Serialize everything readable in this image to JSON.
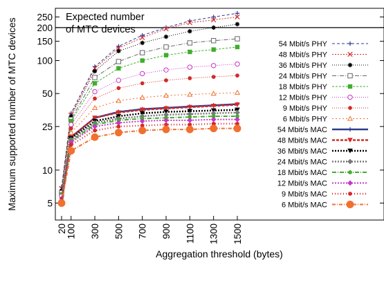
{
  "chart_data": {
    "type": "line",
    "ylabel": "Maximum supported number of MTC devices",
    "xlabel": "Aggregation threshold (bytes)",
    "y_scale": "log",
    "ylim": [
      3.5,
      300
    ],
    "xlim": [
      20,
      1500
    ],
    "x": [
      20,
      100,
      300,
      500,
      700,
      900,
      1100,
      1300,
      1500
    ],
    "x_tick_labels": [
      "20",
      "100",
      "300",
      "500",
      "700",
      "900",
      "1100",
      "1300",
      "1500"
    ],
    "y_ticks": [
      5,
      10,
      25,
      50,
      100,
      150,
      200,
      250
    ],
    "y_tick_labels": [
      "5",
      "10",
      "25",
      "50",
      "100",
      "150",
      "200",
      "250"
    ],
    "grid": false,
    "legend_position": "right",
    "annotation": {
      "line1": "Expected number",
      "line2": "of MTC devices",
      "value": 200
    },
    "series": [
      {
        "name": "54 Mbit/s PHY",
        "color": "#2b3b8f",
        "dash": "4,3",
        "width": 1,
        "marker": "plus",
        "values": [
          7,
          33,
          88,
          135,
          170,
          200,
          230,
          250,
          270
        ]
      },
      {
        "name": "48 Mbit/s PHY",
        "color": "#d42a2a",
        "dash": "2,2",
        "width": 1,
        "marker": "x",
        "values": [
          6.8,
          32,
          85,
          130,
          162,
          195,
          222,
          235,
          250
        ]
      },
      {
        "name": "36 Mbit/s PHY",
        "color": "#000000",
        "dash": "1,2",
        "width": 1,
        "marker": "star",
        "values": [
          6.5,
          31,
          80,
          122,
          145,
          165,
          185,
          200,
          215
        ]
      },
      {
        "name": "24 Mbit/s PHY",
        "color": "#666666",
        "dash": "6,2,1,2",
        "width": 1,
        "marker": "square-open",
        "values": [
          6.2,
          29,
          70,
          98,
          118,
          133,
          145,
          152,
          158
        ]
      },
      {
        "name": "18 Mbit/s PHY",
        "color": "#3fae2a",
        "dash": "3,2",
        "width": 1,
        "marker": "square-filled",
        "values": [
          6,
          28,
          62,
          85,
          100,
          112,
          120,
          126,
          133
        ]
      },
      {
        "name": "12 Mbit/s PHY",
        "color": "#c636c6",
        "dash": "1,2",
        "width": 1,
        "marker": "circle-open",
        "values": [
          5.8,
          26,
          52,
          66,
          76,
          82,
          87,
          90,
          93
        ]
      },
      {
        "name": "9 Mbit/s PHY",
        "color": "#d42a2a",
        "dash": "1,2",
        "width": 1,
        "marker": "circle-filled",
        "values": [
          5.5,
          24,
          45,
          56,
          62,
          66,
          69,
          71,
          73
        ]
      },
      {
        "name": "6 Mbit/s PHY",
        "color": "#f07030",
        "dash": "2,3",
        "width": 1,
        "marker": "triangle-open",
        "values": [
          5.3,
          22,
          37,
          43,
          46,
          48,
          49,
          50,
          51
        ]
      },
      {
        "name": "54 Mbit/s MAC",
        "color": "#2b3b8f",
        "dash": "",
        "width": 2.5,
        "marker": "plus",
        "values": [
          5.1,
          20,
          30,
          34,
          36,
          37,
          38,
          39,
          40
        ]
      },
      {
        "name": "48 Mbit/s MAC",
        "color": "#d42a2a",
        "dash": "4,2",
        "width": 2.5,
        "marker": "triangle-down",
        "values": [
          5.1,
          20,
          30,
          33.5,
          35.5,
          36.5,
          37.5,
          38.5,
          39.5
        ]
      },
      {
        "name": "36 Mbit/s MAC",
        "color": "#000000",
        "dash": "2,2",
        "width": 2.5,
        "marker": "triangle-down",
        "values": [
          5,
          19.5,
          28,
          31,
          33,
          34,
          34.5,
          35,
          35.5
        ]
      },
      {
        "name": "24 Mbit/s MAC",
        "color": "#777777",
        "dash": "2,2",
        "width": 2.5,
        "marker": "diamond",
        "values": [
          5,
          19,
          27,
          29.5,
          31,
          32,
          32.5,
          33,
          33.5
        ]
      },
      {
        "name": "18 Mbit/s MAC",
        "color": "#3fae2a",
        "dash": "6,2,1,2",
        "width": 2,
        "marker": "circle-filled",
        "values": [
          5,
          18.5,
          26,
          28.5,
          29.5,
          30,
          30.5,
          31,
          31
        ]
      },
      {
        "name": "12 Mbit/s MAC",
        "color": "#c636c6",
        "dash": "2,2",
        "width": 2,
        "marker": "diamond",
        "values": [
          5,
          18,
          25,
          27,
          28,
          28.5,
          28.5,
          29,
          29
        ]
      },
      {
        "name": "9 Mbit/s MAC",
        "color": "#d42a2a",
        "dash": "1,3",
        "width": 2.5,
        "marker": "circle-filled",
        "values": [
          5,
          17,
          23,
          25,
          25.5,
          26,
          26,
          26.5,
          26.5
        ]
      },
      {
        "name": "6 Mbit/s MAC",
        "color": "#f07030",
        "dash": "5,2,1,2",
        "width": 2,
        "marker": "big-circle",
        "values": [
          5,
          15,
          20,
          22,
          23,
          23.5,
          23.5,
          24,
          24
        ]
      }
    ]
  }
}
